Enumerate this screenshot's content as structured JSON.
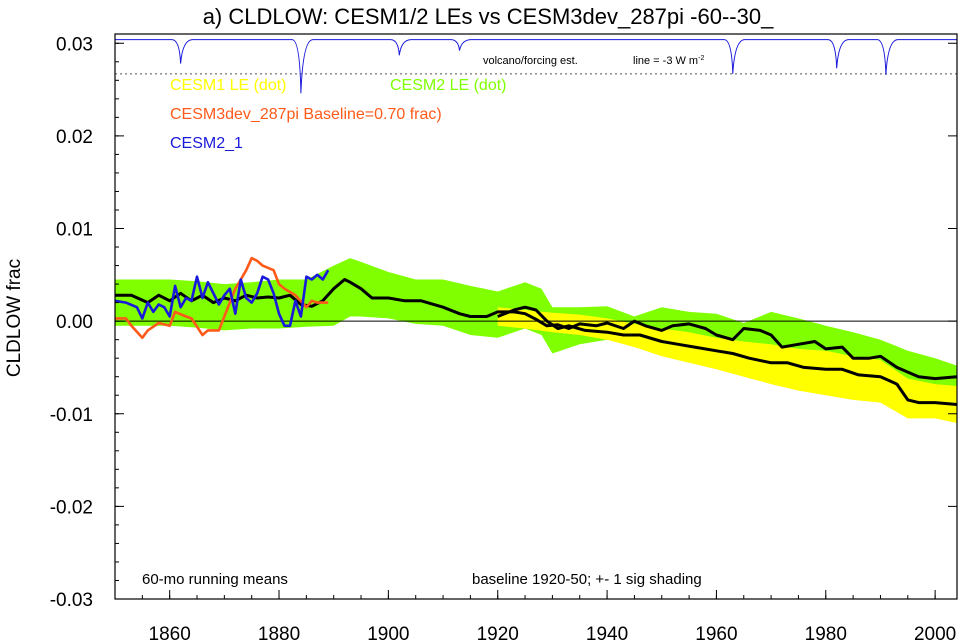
{
  "chart_data": {
    "type": "line",
    "title": "a) CLDLOW: CESM1/2 LEs vs CESM3dev_287pi -60--30_",
    "ylabel": "CLDLOW frac",
    "xlabel": "",
    "xlim": [
      1850,
      2004
    ],
    "ylim": [
      -0.03,
      0.031
    ],
    "x_ticks": [
      1860,
      1880,
      1900,
      1920,
      1940,
      1960,
      1980,
      2000
    ],
    "x_tick_labels": [
      "1860",
      "1880",
      "1900",
      "1920",
      "1940",
      "1960",
      "1980",
      "2000"
    ],
    "y_ticks": [
      0.03,
      0.02,
      0.01,
      0.0,
      -0.01,
      -0.02,
      -0.03
    ],
    "y_tick_labels": [
      "0.03",
      "0.02",
      "0.01",
      "0.00",
      "-0.01",
      "-0.02",
      "-0.03"
    ],
    "zero_line": 0.0,
    "legend": [
      {
        "label": "CESM1 LE (dot)",
        "color": "#ffff00"
      },
      {
        "label": "CESM2 LE (dot)",
        "color": "#7fff00"
      },
      {
        "label": "CESM3dev_287pi Baseline=0.70 frac)",
        "color": "#ff5a1a"
      },
      {
        "label": "CESM2_1",
        "color": "#1a1adc"
      }
    ],
    "annotations": {
      "bottom_left": "60-mo running means",
      "bottom_right": "baseline 1920-50; +- 1 sig shading",
      "volcano_label": "volcano/forcing est.",
      "volcano_line_prefix": "line = -3 W m",
      "volcano_line_sup": "-2"
    },
    "volcano": {
      "baseline": 0.0304,
      "ref_line": 0.0267,
      "dips": [
        {
          "year": 1862,
          "depth": 0.0026
        },
        {
          "year": 1884,
          "depth": 0.0058
        },
        {
          "year": 1902,
          "depth": 0.0017
        },
        {
          "year": 1913,
          "depth": 0.0012
        },
        {
          "year": 1963,
          "depth": 0.0037
        },
        {
          "year": 1982,
          "depth": 0.0031
        },
        {
          "year": 1991,
          "depth": 0.0038
        }
      ]
    },
    "series": [
      {
        "name": "CESM2 LE (dot)",
        "kind": "band",
        "color": "#7fff00",
        "x": [
          1850,
          1855,
          1860,
          1865,
          1870,
          1875,
          1880,
          1885,
          1890,
          1893,
          1895,
          1900,
          1905,
          1910,
          1915,
          1920,
          1925,
          1928,
          1930,
          1935,
          1940,
          1945,
          1950,
          1955,
          1960,
          1965,
          1970,
          1975,
          1980,
          1985,
          1990,
          1995,
          2000,
          2004
        ],
        "lower": [
          -0.0005,
          -0.0005,
          -0.0005,
          -0.0007,
          -0.001,
          -0.0008,
          -0.0008,
          -0.0006,
          -0.0005,
          0.0005,
          0.0005,
          0.0003,
          -0.0003,
          -0.0005,
          -0.0015,
          -0.0018,
          -0.0008,
          -0.0015,
          -0.0035,
          -0.0025,
          -0.002,
          -0.0025,
          -0.002,
          -0.004,
          -0.004,
          -0.0045,
          -0.004,
          -0.0045,
          -0.005,
          -0.006,
          -0.0065,
          -0.0075,
          -0.008,
          -0.0082
        ],
        "upper": [
          0.0045,
          0.0045,
          0.0045,
          0.0043,
          0.004,
          0.0042,
          0.0045,
          0.0045,
          0.006,
          0.0068,
          0.0064,
          0.0053,
          0.0045,
          0.0045,
          0.0038,
          0.0032,
          0.0042,
          0.0035,
          0.0015,
          0.0015,
          0.0016,
          0.0005,
          0.0015,
          0.001,
          0.0008,
          -0.0002,
          0.001,
          0.0003,
          -0.0005,
          -0.0012,
          -0.002,
          -0.0032,
          -0.004,
          -0.0048
        ]
      },
      {
        "name": "CESM1 LE (dot)",
        "kind": "band",
        "color": "#ffff00",
        "x": [
          1920,
          1925,
          1930,
          1935,
          1940,
          1945,
          1950,
          1955,
          1960,
          1965,
          1970,
          1975,
          1980,
          1985,
          1990,
          1995,
          2000,
          2004
        ],
        "lower": [
          -0.0005,
          -0.0008,
          -0.0012,
          -0.0015,
          -0.002,
          -0.0028,
          -0.0038,
          -0.0045,
          -0.0052,
          -0.006,
          -0.0068,
          -0.0075,
          -0.008,
          -0.0085,
          -0.0088,
          -0.0105,
          -0.0105,
          -0.011
        ],
        "upper": [
          0.0015,
          0.0012,
          0.0009,
          0.0007,
          0.0003,
          -0.0003,
          -0.0008,
          -0.0012,
          -0.0018,
          -0.0022,
          -0.0025,
          -0.003,
          -0.0032,
          -0.0038,
          -0.0042,
          -0.0062,
          -0.0068,
          -0.007
        ]
      },
      {
        "name": "CESM2 LE mean",
        "kind": "line",
        "color": "#000000",
        "x": [
          1850,
          1853,
          1856,
          1858,
          1860,
          1862,
          1864,
          1866,
          1868,
          1870,
          1872,
          1874,
          1876,
          1878,
          1880,
          1882,
          1884,
          1886,
          1888,
          1890,
          1892,
          1893,
          1895,
          1897,
          1900,
          1903,
          1906,
          1910,
          1913,
          1915,
          1918,
          1920,
          1923,
          1925,
          1927,
          1929,
          1931,
          1933,
          1935,
          1938,
          1940,
          1943,
          1945,
          1947,
          1950,
          1952,
          1955,
          1958,
          1960,
          1963,
          1965,
          1968,
          1970,
          1972,
          1975,
          1978,
          1980,
          1983,
          1985,
          1988,
          1990,
          1993,
          1995,
          1997,
          2000,
          2004
        ],
        "y": [
          0.0028,
          0.0028,
          0.002,
          0.0028,
          0.0022,
          0.003,
          0.0022,
          0.0028,
          0.002,
          0.0025,
          0.0022,
          0.0028,
          0.0025,
          0.0026,
          0.0025,
          0.0028,
          0.0018,
          0.0016,
          0.0022,
          0.0035,
          0.0045,
          0.0042,
          0.0035,
          0.0025,
          0.0025,
          0.0022,
          0.0022,
          0.0015,
          0.0008,
          0.0005,
          0.0005,
          0.001,
          0.001,
          0.0008,
          0.0002,
          -0.0005,
          -0.0004,
          -0.0008,
          -0.0003,
          -0.0005,
          -0.0002,
          -0.0008,
          0.0,
          -0.0005,
          -0.001,
          -0.0005,
          -0.0003,
          -0.0008,
          -0.0015,
          -0.002,
          -0.0008,
          -0.001,
          -0.0015,
          -0.0028,
          -0.0025,
          -0.0022,
          -0.003,
          -0.0028,
          -0.004,
          -0.004,
          -0.0038,
          -0.005,
          -0.0055,
          -0.006,
          -0.0062,
          -0.006
        ]
      },
      {
        "name": "CESM1 LE mean",
        "kind": "line",
        "color": "#000000",
        "x": [
          1920,
          1923,
          1925,
          1927,
          1929,
          1931,
          1933,
          1936,
          1940,
          1943,
          1946,
          1950,
          1953,
          1956,
          1960,
          1963,
          1966,
          1970,
          1973,
          1976,
          1980,
          1983,
          1986,
          1990,
          1993,
          1995,
          1997,
          2000,
          2004
        ],
        "y": [
          0.0005,
          0.0012,
          0.0015,
          0.0012,
          0.0,
          -0.0008,
          -0.0005,
          -0.001,
          -0.0012,
          -0.0015,
          -0.0015,
          -0.0022,
          -0.0025,
          -0.0028,
          -0.0032,
          -0.0035,
          -0.004,
          -0.0045,
          -0.0045,
          -0.005,
          -0.0052,
          -0.0052,
          -0.0058,
          -0.006,
          -0.0068,
          -0.0085,
          -0.0088,
          -0.0088,
          -0.009
        ]
      },
      {
        "name": "CESM3dev_287pi Baseline=0.70 frac)",
        "kind": "line",
        "color": "#ff5a1a",
        "x": [
          1850,
          1852,
          1853,
          1855,
          1856,
          1858,
          1860,
          1861,
          1863,
          1864,
          1866,
          1867,
          1869,
          1871,
          1872,
          1873,
          1874,
          1875,
          1876,
          1877,
          1879,
          1880,
          1881,
          1883,
          1885,
          1886,
          1887,
          1889
        ],
        "y": [
          0.0003,
          0.0003,
          -0.0005,
          -0.0018,
          -0.001,
          -0.0002,
          -0.0005,
          0.001,
          0.0005,
          0.0003,
          -0.0015,
          -0.001,
          -0.001,
          0.002,
          0.0035,
          0.0045,
          0.0055,
          0.0068,
          0.0065,
          0.006,
          0.0055,
          0.004,
          0.0035,
          0.0028,
          0.0015,
          0.0022,
          0.002,
          0.002
        ]
      },
      {
        "name": "CESM2_1",
        "kind": "line",
        "color": "#1a1adc",
        "x": [
          1850,
          1852,
          1854,
          1855,
          1856,
          1857,
          1858,
          1859,
          1860,
          1861,
          1862,
          1863,
          1864,
          1865,
          1866,
          1867,
          1868,
          1869,
          1870,
          1871,
          1872,
          1873,
          1874,
          1875,
          1876,
          1877,
          1878,
          1879,
          1880,
          1881,
          1882,
          1883,
          1884,
          1885,
          1886,
          1887,
          1888,
          1889
        ],
        "y": [
          0.0022,
          0.002,
          0.0015,
          0.0003,
          0.002,
          0.001,
          0.0018,
          0.0015,
          0.0005,
          0.0038,
          0.0015,
          0.0025,
          0.0022,
          0.0048,
          0.0025,
          0.0042,
          0.003,
          0.0018,
          0.0028,
          0.0035,
          0.0008,
          0.0045,
          0.0025,
          0.002,
          0.003,
          0.0048,
          0.0045,
          0.003,
          0.0008,
          -0.0005,
          -0.0005,
          0.0022,
          0.0005,
          0.0048,
          0.0045,
          0.005,
          0.0045,
          0.0055
        ]
      }
    ]
  }
}
